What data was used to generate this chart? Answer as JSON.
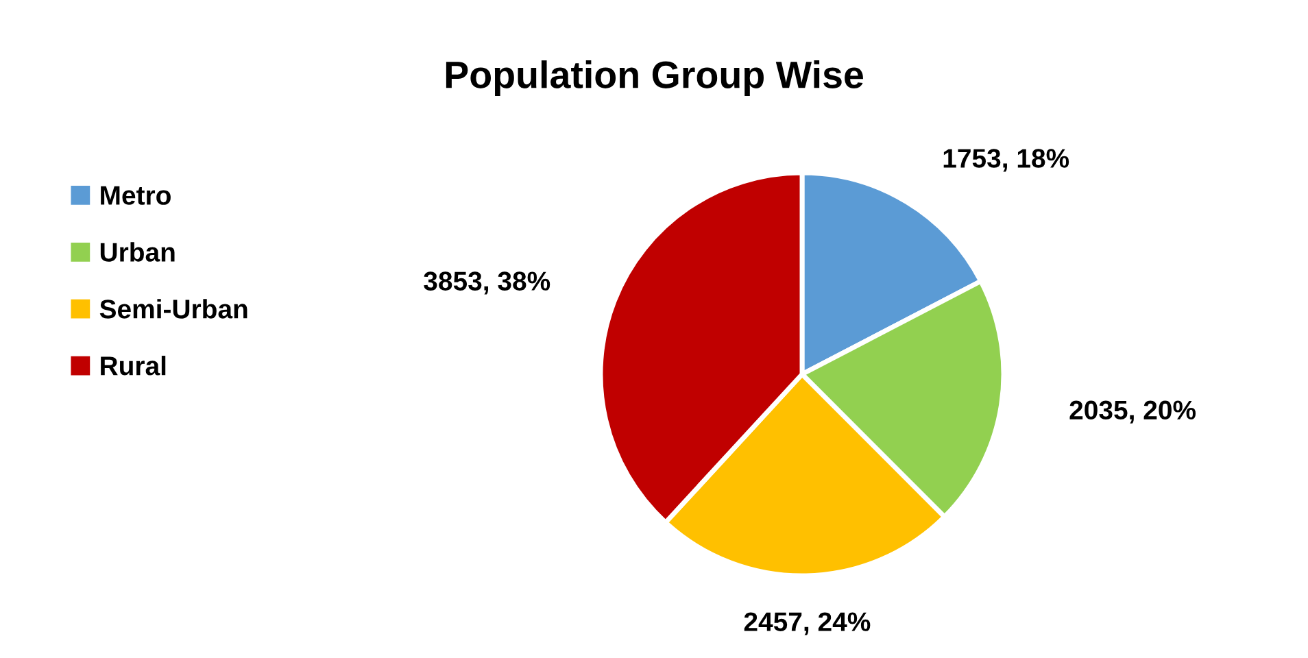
{
  "chart_data": {
    "type": "pie",
    "title": "Population Group Wise",
    "categories": [
      "Metro",
      "Urban",
      "Semi-Urban",
      "Rural"
    ],
    "values": [
      1753,
      2035,
      2457,
      3853
    ],
    "colors": [
      "#5b9bd5",
      "#92d050",
      "#ffc000",
      "#c00000"
    ],
    "value_labels": [
      "1753, 18%",
      "2035, 20%",
      "2457, 24%",
      "3853, 38%"
    ],
    "legend": "left"
  }
}
